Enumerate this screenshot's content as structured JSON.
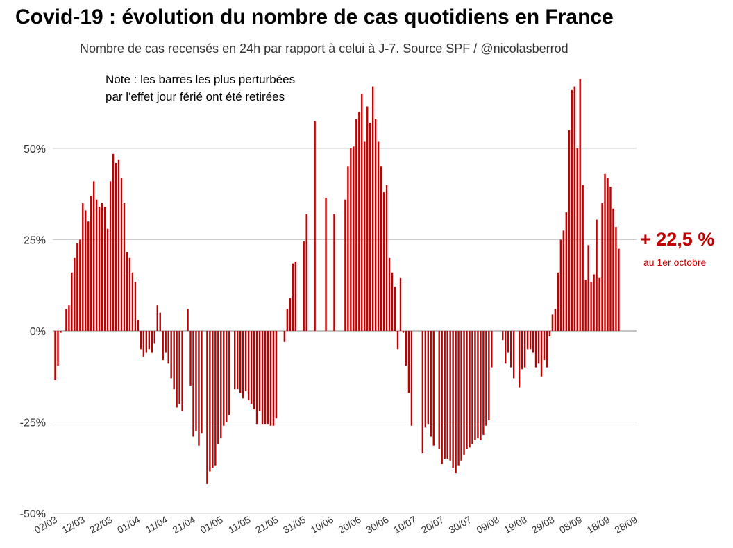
{
  "chart_data": {
    "type": "bar",
    "title": "Covid-19 : évolution du nombre de cas quotidiens en France",
    "subtitle": "Nombre de cas recensés en 24h par rapport à celui à J-7. Source SPF / @nicolasberrod",
    "note_line1": "Note : les barres les plus perturbées",
    "note_line2": "par l'effet jour férié ont été retirées",
    "annotation_value": "+ 22,5 %",
    "annotation_label": "au 1er octobre",
    "ylim": [
      -50,
      70
    ],
    "y_ticks": [
      50,
      25,
      0,
      -25,
      -50
    ],
    "y_tick_labels": [
      "50%",
      "25%",
      "0%",
      "-25%",
      "-50%"
    ],
    "x_tick_labels": [
      "02/03",
      "12/03",
      "22/03",
      "01/04",
      "11/04",
      "21/04",
      "01/05",
      "11/05",
      "21/05",
      "31/05",
      "10/06",
      "20/06",
      "30/06",
      "10/07",
      "20/07",
      "30/07",
      "09/08",
      "19/08",
      "29/08",
      "08/09",
      "18/09",
      "28/09"
    ],
    "bar_color": "#c00000",
    "start_date": "02/03",
    "days_between_ticks": 10,
    "values": [
      -13.5,
      -9.5,
      -0.5,
      null,
      6,
      7,
      16,
      20,
      24,
      25,
      35,
      33,
      30,
      37,
      41,
      36,
      34,
      35,
      34,
      28,
      41,
      48.5,
      46,
      47,
      42,
      35,
      21.5,
      20,
      16,
      13.5,
      3,
      -5,
      -7,
      -6,
      -5,
      -6,
      -3.5,
      7,
      5,
      -8,
      -6,
      -9,
      -13,
      -16,
      -21,
      -20,
      -22,
      null,
      6,
      -15,
      -29,
      -27.5,
      -31.5,
      -28,
      null,
      -42,
      -38.5,
      -37.5,
      -37,
      -31,
      -29.5,
      -26,
      -25,
      -23,
      null,
      -16,
      -16,
      -17,
      -18.5,
      -16.5,
      -19,
      -20,
      -21.5,
      -25.5,
      -22,
      -25.5,
      -25.5,
      -25.5,
      -26,
      -26,
      -24,
      null,
      null,
      -3,
      6,
      9,
      18.5,
      19,
      null,
      null,
      24.5,
      32,
      null,
      null,
      57.5,
      null,
      null,
      null,
      36.5,
      null,
      null,
      32,
      null,
      null,
      null,
      36,
      45,
      50,
      50.5,
      58,
      60,
      65,
      52,
      61.5,
      57,
      67,
      58,
      52,
      45,
      38,
      40,
      20,
      16,
      12,
      -5,
      14.5,
      -0.5,
      -9.5,
      -17,
      -26,
      null,
      null,
      null,
      -33.5,
      -26.5,
      -25.5,
      -29,
      -31.5,
      null,
      -32.5,
      -36.5,
      -35,
      -35,
      -35.5,
      -37.5,
      -39,
      -37,
      -35.5,
      -34,
      -32.5,
      -32,
      -31,
      -30,
      -29.5,
      -30,
      -28.5,
      -26,
      -24.5,
      -10,
      null,
      null,
      null,
      -2.5,
      -9,
      -6,
      -10,
      -13,
      null,
      -15.5,
      -10.5,
      -10,
      -5,
      -5,
      -6,
      -10,
      -9,
      -12.5,
      -8,
      -10,
      -1.5,
      4.5,
      6,
      16,
      25,
      27.5,
      32.5,
      55,
      66,
      67,
      50,
      69,
      40,
      14,
      23.5,
      13.5,
      15.5,
      30.5,
      14.5,
      35,
      43,
      42,
      39.5,
      33.5,
      28.5,
      22.5
    ]
  }
}
